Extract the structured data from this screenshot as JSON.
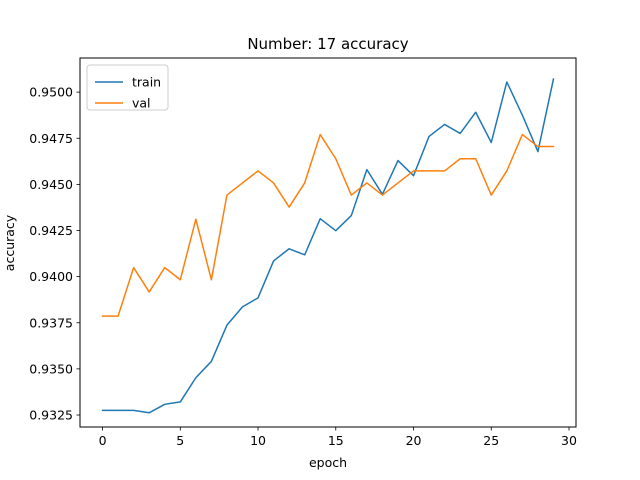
{
  "chart_data": {
    "type": "line",
    "title": "Number: 17 accuracy",
    "xlabel": "epoch",
    "ylabel": "accuracy",
    "xlim": [
      -1.45,
      30.45
    ],
    "ylim": [
      0.93185,
      0.95185
    ],
    "xticks": [
      0,
      5,
      10,
      15,
      20,
      25,
      30
    ],
    "yticks": [
      0.9325,
      0.935,
      0.9375,
      0.94,
      0.9425,
      0.945,
      0.9475,
      0.95
    ],
    "ytick_labels": [
      "0.9325",
      "0.9350",
      "0.9375",
      "0.9400",
      "0.9425",
      "0.9450",
      "0.9475",
      "0.9500"
    ],
    "grid": false,
    "legend_position": "upper-left",
    "x": [
      0,
      1,
      2,
      3,
      4,
      5,
      6,
      7,
      8,
      9,
      10,
      11,
      12,
      13,
      14,
      15,
      16,
      17,
      18,
      19,
      20,
      21,
      22,
      23,
      24,
      25,
      26,
      27,
      28,
      29
    ],
    "series": [
      {
        "name": "train",
        "color": "#1f77b4",
        "values": [
          0.93275,
          0.93275,
          0.93275,
          0.93262,
          0.93308,
          0.93321,
          0.93452,
          0.93541,
          0.93737,
          0.93836,
          0.93885,
          0.94085,
          0.94151,
          0.94118,
          0.94314,
          0.94249,
          0.94331,
          0.9458,
          0.94446,
          0.94629,
          0.94547,
          0.9476,
          0.94825,
          0.94776,
          0.94891,
          0.94727,
          0.95055,
          0.94875,
          0.94678,
          0.95071
        ]
      },
      {
        "name": "val",
        "color": "#ff7f0e",
        "values": [
          0.93786,
          0.93786,
          0.94049,
          0.93917,
          0.94049,
          0.93983,
          0.94311,
          0.93983,
          0.94442,
          0.94508,
          0.94573,
          0.94508,
          0.94377,
          0.94508,
          0.9477,
          0.94639,
          0.94442,
          0.94508,
          0.94442,
          0.94508,
          0.94573,
          0.94573,
          0.94573,
          0.94639,
          0.94639,
          0.94442,
          0.94573,
          0.9477,
          0.94705,
          0.94705
        ]
      }
    ]
  }
}
